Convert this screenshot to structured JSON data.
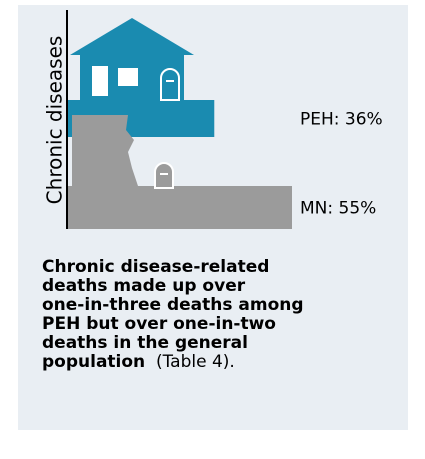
{
  "chart_data": {
    "type": "bar",
    "y_label": "Chronic diseases",
    "categories": [
      "PEH",
      "MN"
    ],
    "values": [
      36,
      55
    ],
    "value_labels": [
      "PEH: 36%",
      "MN: 55%"
    ],
    "colors": [
      "#1a8bb0",
      "#9b9b9b"
    ],
    "annotation_lines": [
      "Chronic disease-related",
      "deaths made up over",
      "one-in-three deaths among",
      "PEH but over one-in-two",
      "deaths in the general",
      "population"
    ],
    "annotation_note": "(Table 4)."
  }
}
